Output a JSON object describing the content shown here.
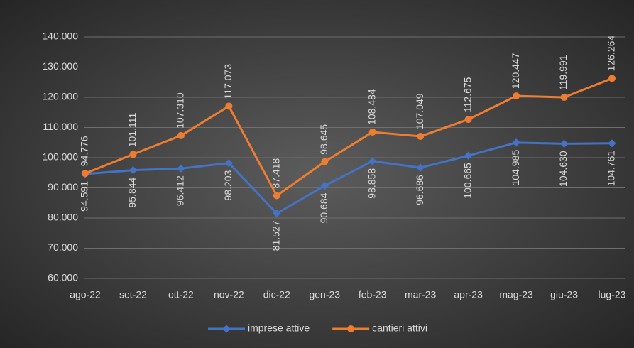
{
  "chart_data": {
    "type": "line",
    "categories": [
      "ago-22",
      "set-22",
      "ott-22",
      "nov-22",
      "dic-22",
      "gen-23",
      "feb-23",
      "mar-23",
      "apr-23",
      "mag-23",
      "giu-23",
      "lug-23"
    ],
    "series": [
      {
        "name": "imprese attive",
        "color": "#4472c4",
        "values": [
          94591,
          95844,
          96412,
          98203,
          81527,
          90684,
          98858,
          96686,
          100665,
          104985,
          104630,
          104761
        ],
        "value_labels": [
          "94.591",
          "95.844",
          "96.412",
          "98.203",
          "81.527",
          "90.684",
          "98.858",
          "96.686",
          "100.665",
          "104.985",
          "104.630",
          "104.761"
        ]
      },
      {
        "name": "cantieri attivi",
        "color": "#ed7d31",
        "values": [
          94776,
          101111,
          107310,
          117073,
          87418,
          98645,
          108484,
          107049,
          112675,
          120447,
          119991,
          126264
        ],
        "value_labels": [
          "94.776",
          "101.111",
          "107.310",
          "117.073",
          "87.418",
          "98.645",
          "108.484",
          "107.049",
          "112.675",
          "120.447",
          "119.991",
          "126.264"
        ]
      }
    ],
    "ylim": [
      60000,
      140000
    ],
    "yticks": [
      {
        "value": 60000,
        "label": "60.000"
      },
      {
        "value": 70000,
        "label": "70.000"
      },
      {
        "value": 80000,
        "label": "80.000"
      },
      {
        "value": 90000,
        "label": "90.000"
      },
      {
        "value": 100000,
        "label": "100.000"
      },
      {
        "value": 110000,
        "label": "110.000"
      },
      {
        "value": 120000,
        "label": "120.000"
      },
      {
        "value": 130000,
        "label": "130.000"
      },
      {
        "value": 140000,
        "label": "140.000"
      }
    ],
    "grid": true,
    "legend": "bottom"
  }
}
